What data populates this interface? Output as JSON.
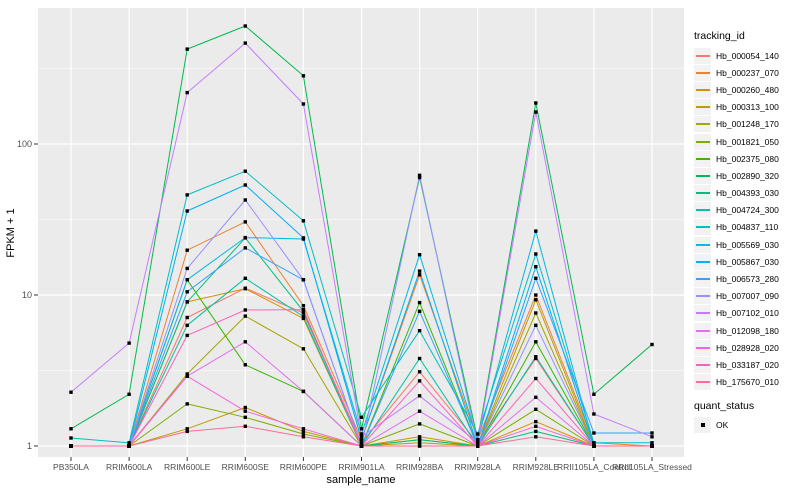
{
  "figure": {
    "background": "#ffffff",
    "panel_background": "#ebebeb",
    "gridline_color": "#ffffff",
    "axis_text_color": "#4d4d4d",
    "tick_mark_color": "#333333",
    "marker_color": "#000000",
    "legend_key_background": "#f2f2f2"
  },
  "chart_data": {
    "type": "line",
    "title": "",
    "xlabel": "sample_name",
    "ylabel": "FPKM + 1",
    "y_scale": "log10",
    "y_ticks": [
      1,
      10,
      100
    ],
    "y_minor_ticks": [
      3.162,
      31.62,
      316.2
    ],
    "ylim": [
      0.85,
      790
    ],
    "grid": "major-and-minor",
    "legend_position": "right",
    "marker_shape": "filled-square",
    "categories": [
      "PB350LA",
      "RRIM600LA",
      "RRIM600LE",
      "RRIM600SE",
      "RRIM600PE",
      "RRIM901LA",
      "RRIM928BA",
      "RRIM928LA",
      "RRIM928LE",
      "RRII105LA_Control",
      "RRII105LA_Stressed"
    ],
    "series": [
      {
        "name": "Hb_000054_140",
        "color": "#F8766D",
        "values": [
          1.0,
          1.0,
          7.1,
          11.1,
          7.6,
          1.05,
          3.1,
          1.05,
          3.8,
          1.0,
          1.0
        ]
      },
      {
        "name": "Hb_000237_070",
        "color": "#EA8331",
        "values": [
          1.0,
          1.0,
          19.8,
          30.5,
          8.5,
          1.1,
          13.6,
          1.1,
          10.0,
          1.05,
          1.0
        ]
      },
      {
        "name": "Hb_000260_480",
        "color": "#D89000",
        "values": [
          1.0,
          1.0,
          9.0,
          11.0,
          7.0,
          1.0,
          1.15,
          1.0,
          1.45,
          1.0,
          1.0
        ]
      },
      {
        "name": "Hb_000313_100",
        "color": "#C09B00",
        "values": [
          1.0,
          1.0,
          1.3,
          1.8,
          1.25,
          1.0,
          1.05,
          1.0,
          9.3,
          1.0,
          1.0
        ]
      },
      {
        "name": "Hb_001248_170",
        "color": "#A3A500",
        "values": [
          1.0,
          1.0,
          3.0,
          7.25,
          4.4,
          1.0,
          1.1,
          1.0,
          7.6,
          1.0,
          1.0
        ]
      },
      {
        "name": "Hb_001821_050",
        "color": "#7CAE00",
        "values": [
          1.0,
          1.0,
          1.9,
          1.55,
          1.2,
          1.0,
          1.4,
          1.0,
          1.75,
          1.0,
          1.0
        ]
      },
      {
        "name": "Hb_002375_080",
        "color": "#39B600",
        "values": [
          1.0,
          1.0,
          12.6,
          3.45,
          2.3,
          1.0,
          8.9,
          1.0,
          4.9,
          1.0,
          1.0
        ]
      },
      {
        "name": "Hb_002890_320",
        "color": "#00BB4E",
        "values": [
          1.3,
          2.2,
          425,
          605,
          283,
          1.3,
          60,
          1.1,
          187,
          2.2,
          4.7
        ]
      },
      {
        "name": "Hb_004393_030",
        "color": "#00BF7D",
        "values": [
          1.0,
          1.0,
          9.0,
          23.9,
          7.8,
          1.0,
          1.1,
          1.0,
          1.25,
          1.0,
          1.0
        ]
      },
      {
        "name": "Hb_004724_300",
        "color": "#00C1A3",
        "values": [
          1.0,
          1.0,
          6.3,
          12.9,
          7.2,
          1.0,
          3.8,
          1.0,
          3.9,
          1.0,
          1.0
        ]
      },
      {
        "name": "Hb_004837_110",
        "color": "#00BFC4",
        "values": [
          1.13,
          1.05,
          46,
          66,
          31,
          1.55,
          5.8,
          1.2,
          18.7,
          1.05,
          1.05
        ]
      },
      {
        "name": "Hb_005569_030",
        "color": "#00BAE0",
        "values": [
          1.0,
          1.0,
          12.6,
          24,
          23.5,
          1.2,
          18.5,
          1.1,
          26.5,
          1.0,
          1.0
        ]
      },
      {
        "name": "Hb_005867_030",
        "color": "#00B0F6",
        "values": [
          1.0,
          1.0,
          36,
          53.5,
          23.9,
          1.1,
          14.4,
          1.0,
          15.4,
          1.0,
          1.0
        ]
      },
      {
        "name": "Hb_006573_280",
        "color": "#35A2FF",
        "values": [
          1.0,
          1.0,
          10.5,
          20.5,
          12.6,
          1.0,
          7.8,
          1.0,
          12.9,
          1.22,
          1.22
        ]
      },
      {
        "name": "Hb_007007_090",
        "color": "#9590FF",
        "values": [
          1.0,
          1.0,
          15.0,
          42.6,
          12.6,
          1.0,
          62,
          1.0,
          6.3,
          1.0,
          1.0
        ]
      },
      {
        "name": "Hb_007102_010",
        "color": "#C77CFF",
        "values": [
          2.27,
          4.8,
          219,
          466,
          184,
          1.15,
          2.15,
          1.05,
          163,
          1.63,
          1.15
        ]
      },
      {
        "name": "Hb_012098_180",
        "color": "#E76BF3",
        "values": [
          1.0,
          1.0,
          2.9,
          4.9,
          2.3,
          1.0,
          1.7,
          1.0,
          2.1,
          1.0,
          1.0
        ]
      },
      {
        "name": "Hb_028928_020",
        "color": "#FA62DB",
        "values": [
          1.0,
          1.0,
          2.9,
          1.7,
          1.3,
          1.0,
          1.0,
          1.0,
          1.35,
          1.0,
          1.0
        ]
      },
      {
        "name": "Hb_033187_020",
        "color": "#FF62BC",
        "values": [
          1.0,
          1.0,
          5.4,
          7.95,
          8.0,
          1.0,
          2.7,
          1.0,
          2.8,
          1.0,
          1.0
        ]
      },
      {
        "name": "Hb_175670_010",
        "color": "#FF6A98",
        "values": [
          1.0,
          1.0,
          1.25,
          1.35,
          1.15,
          1.0,
          1.0,
          1.0,
          1.15,
          1.0,
          1.0
        ]
      }
    ],
    "legend": {
      "series_title": "tracking_id",
      "quant_title": "quant_status",
      "quant_label": "OK"
    }
  }
}
